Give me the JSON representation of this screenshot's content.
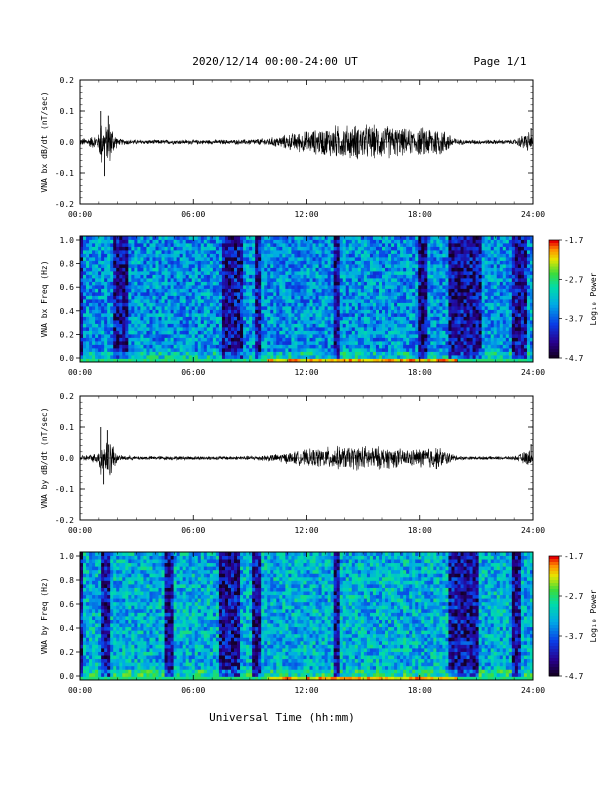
{
  "header": {
    "title": "2020/12/14  00:00-24:00 UT",
    "page_label": "Page 1/1"
  },
  "footer": {
    "xlabel": "Universal Time (hh:mm)"
  },
  "chart_data": [
    {
      "type": "line",
      "ylabel": "VNA bx dB/dt (nT/sec)",
      "xlim": [
        0,
        24
      ],
      "ylim": [
        -0.2,
        0.2
      ],
      "x_ticks": [
        "00:00",
        "06:00",
        "12:00",
        "18:00",
        "24:00"
      ],
      "y_ticks": [
        "0.2",
        "0.1",
        "0.0",
        "-0.1",
        "-0.2"
      ],
      "envelope_hours": [
        0,
        0.5,
        1,
        1.1,
        1.3,
        1.5,
        2,
        3,
        4,
        5,
        6,
        7,
        8,
        9,
        9.5,
        10,
        10.5,
        11,
        11.5,
        12,
        12.5,
        13,
        13.5,
        14,
        14.5,
        15,
        15.5,
        16,
        16.5,
        17,
        17.5,
        18,
        18.5,
        19,
        19.5,
        20,
        20.5,
        21,
        22,
        23,
        23.8,
        24
      ],
      "envelope_amplitude": [
        0.012,
        0.018,
        0.03,
        0.1,
        0.04,
        0.09,
        0.012,
        0.008,
        0.008,
        0.008,
        0.008,
        0.008,
        0.008,
        0.01,
        0.012,
        0.015,
        0.02,
        0.028,
        0.035,
        0.04,
        0.045,
        0.052,
        0.06,
        0.06,
        0.062,
        0.065,
        0.06,
        0.062,
        0.058,
        0.05,
        0.045,
        0.05,
        0.058,
        0.055,
        0.035,
        0.01,
        0.008,
        0.008,
        0.008,
        0.008,
        0.04,
        0.008
      ],
      "spike_events": [
        {
          "time": 1.1,
          "amp": 0.1
        },
        {
          "time": 1.3,
          "amp": -0.11
        },
        {
          "time": 1.5,
          "amp": 0.085
        },
        {
          "time": 23.9,
          "amp": 0.045
        }
      ]
    },
    {
      "type": "heatmap",
      "ylabel": "VNA bx Freq (Hz)",
      "xlim": [
        0,
        24
      ],
      "ylim": [
        0,
        1
      ],
      "x_ticks": [
        "00:00",
        "06:00",
        "12:00",
        "18:00",
        "24:00"
      ],
      "y_ticks": [
        "1.0",
        "0.8",
        "0.6",
        "0.4",
        "0.2",
        "0.0"
      ],
      "colorbar": {
        "label": "Log₁₀ Power",
        "range": [
          -4.7,
          -1.7
        ],
        "ticks": [
          "-1.7",
          "-2.7",
          "-3.7",
          "-4.7"
        ]
      },
      "dark_bands_hours": [
        [
          0.0,
          0.2
        ],
        [
          1.8,
          2.6
        ],
        [
          7.5,
          8.6
        ],
        [
          9.3,
          9.6
        ],
        [
          13.4,
          13.8
        ],
        [
          18.0,
          18.4
        ],
        [
          19.6,
          21.2
        ],
        [
          22.8,
          23.6
        ]
      ],
      "low_freq_power_peak_hours": [
        10,
        20
      ]
    },
    {
      "type": "line",
      "ylabel": "VNA by dB/dt (nT/sec)",
      "xlim": [
        0,
        24
      ],
      "ylim": [
        -0.2,
        0.2
      ],
      "x_ticks": [
        "00:00",
        "06:00",
        "12:00",
        "18:00",
        "24:00"
      ],
      "y_ticks": [
        "0.2",
        "0.1",
        "0.0",
        "-0.1",
        "-0.2"
      ],
      "envelope_hours": [
        0,
        0.5,
        1,
        1.1,
        1.3,
        1.5,
        2,
        3,
        4,
        5,
        6,
        7,
        8,
        9,
        9.5,
        10,
        10.5,
        11,
        11.5,
        12,
        12.5,
        13,
        13.5,
        14,
        14.5,
        15,
        15.5,
        16,
        16.5,
        17,
        17.5,
        18,
        18.5,
        19,
        19.5,
        20,
        20.5,
        21,
        22,
        23,
        23.8,
        24
      ],
      "envelope_amplitude": [
        0.01,
        0.012,
        0.02,
        0.1,
        0.04,
        0.09,
        0.01,
        0.007,
        0.007,
        0.007,
        0.007,
        0.007,
        0.007,
        0.008,
        0.01,
        0.012,
        0.015,
        0.02,
        0.025,
        0.03,
        0.034,
        0.038,
        0.042,
        0.04,
        0.042,
        0.045,
        0.042,
        0.04,
        0.038,
        0.033,
        0.03,
        0.035,
        0.042,
        0.04,
        0.022,
        0.008,
        0.006,
        0.006,
        0.006,
        0.006,
        0.03,
        0.006
      ],
      "spike_events": [
        {
          "time": 1.1,
          "amp": 0.1
        },
        {
          "time": 1.25,
          "amp": -0.085
        },
        {
          "time": 1.45,
          "amp": 0.09
        },
        {
          "time": 23.9,
          "amp": 0.045
        }
      ]
    },
    {
      "type": "heatmap",
      "ylabel": "VNA by Freq (Hz)",
      "xlim": [
        0,
        24
      ],
      "ylim": [
        0,
        1
      ],
      "x_ticks": [
        "00:00",
        "06:00",
        "12:00",
        "18:00",
        "24:00"
      ],
      "y_ticks": [
        "1.0",
        "0.8",
        "0.6",
        "0.4",
        "0.2",
        "0.0"
      ],
      "colorbar": {
        "label": "Log₁₀ Power",
        "range": [
          -4.7,
          -1.7
        ],
        "ticks": [
          "-1.7",
          "-2.7",
          "-3.7",
          "-4.7"
        ]
      },
      "dark_bands_hours": [
        [
          0.0,
          0.2
        ],
        [
          1.2,
          1.6
        ],
        [
          4.5,
          5.0
        ],
        [
          7.3,
          8.4
        ],
        [
          9.2,
          9.6
        ],
        [
          13.5,
          13.7
        ],
        [
          19.6,
          21.1
        ],
        [
          22.9,
          23.4
        ]
      ],
      "low_freq_power_peak_hours": [
        10,
        20
      ]
    }
  ]
}
